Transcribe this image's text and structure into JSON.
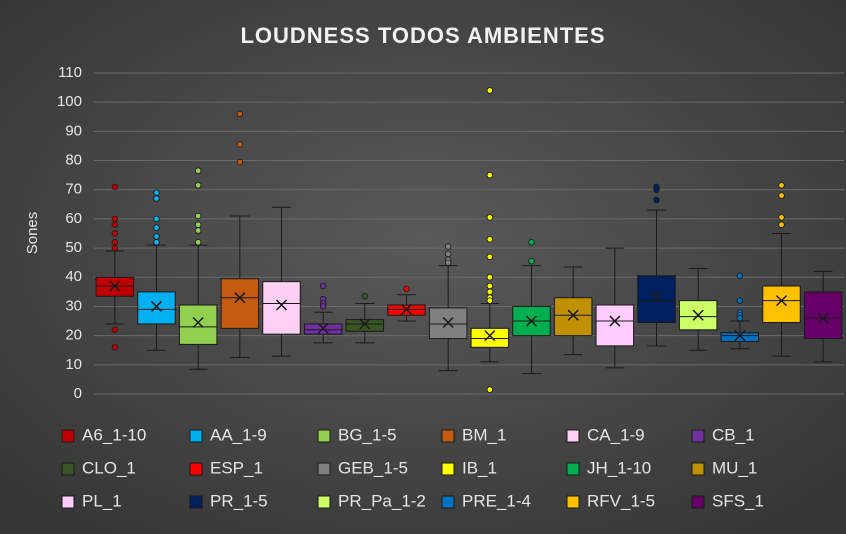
{
  "chart_data": {
    "type": "box",
    "title": "LOUDNESS TODOS AMBIENTES",
    "y_label": "Sones",
    "ylim": [
      0,
      110
    ],
    "yticks": [
      0,
      10,
      20,
      30,
      40,
      50,
      60,
      70,
      80,
      90,
      100,
      110
    ],
    "grid": true,
    "legend": "bottom",
    "series": [
      {
        "name": "A6_1-10",
        "color": "#c00000",
        "min": 24,
        "q1": 33.5,
        "median": 37,
        "q3": 40,
        "max": 49,
        "mean": 37,
        "outliers": [
          71,
          60,
          58,
          55,
          52,
          50,
          22,
          16
        ]
      },
      {
        "name": "AA_1-9",
        "color": "#00b0f0",
        "min": 15,
        "q1": 24,
        "median": 29,
        "q3": 35,
        "max": 51,
        "mean": 30,
        "outliers": [
          69,
          67,
          60,
          57,
          54,
          52
        ]
      },
      {
        "name": "BG_1-5",
        "color": "#92d050",
        "min": 8.5,
        "q1": 17,
        "median": 23,
        "q3": 30.5,
        "max": 51,
        "mean": 24.5,
        "outliers": [
          76.5,
          71.5,
          61,
          58,
          56,
          52
        ]
      },
      {
        "name": "BM_1",
        "color": "#c55a11",
        "min": 12.5,
        "q1": 22.5,
        "median": 33,
        "q3": 39.5,
        "max": 61,
        "mean": 33,
        "outliers": [
          96,
          85.5,
          79.5
        ]
      },
      {
        "name": "CA_1-9",
        "color": "#ffd0f4",
        "min": 13,
        "q1": 20.5,
        "median": 31,
        "q3": 38.5,
        "max": 64,
        "mean": 30.5,
        "outliers": []
      },
      {
        "name": "CB_1",
        "color": "#7030a0",
        "min": 17.5,
        "q1": 20.5,
        "median": 22,
        "q3": 24,
        "max": 28,
        "mean": 22.5,
        "outliers": [
          37,
          32.5,
          31,
          30
        ]
      },
      {
        "name": "CLO_1",
        "color": "#375623",
        "min": 17.5,
        "q1": 21.5,
        "median": 24,
        "q3": 25.5,
        "max": 31,
        "mean": 24,
        "outliers": [
          33.5
        ]
      },
      {
        "name": "ESP_1",
        "color": "#ff0000",
        "min": 25,
        "q1": 27,
        "median": 29,
        "q3": 30.5,
        "max": 34,
        "mean": 29,
        "outliers": [
          36
        ]
      },
      {
        "name": "GEB_1-5",
        "color": "#808080",
        "min": 8,
        "q1": 19,
        "median": 24,
        "q3": 29.5,
        "max": 44,
        "mean": 24.5,
        "outliers": [
          50.5,
          48,
          46,
          45
        ]
      },
      {
        "name": "IB_1",
        "color": "#ffff00",
        "min": 11,
        "q1": 16,
        "median": 19,
        "q3": 22.5,
        "max": 31,
        "mean": 20,
        "outliers": [
          104,
          75,
          60.5,
          53,
          47,
          40,
          37,
          35,
          33,
          32,
          1.5
        ]
      },
      {
        "name": "JH_1-10",
        "color": "#00b050",
        "min": 7,
        "q1": 20,
        "median": 25,
        "q3": 30,
        "max": 44,
        "mean": 25,
        "outliers": [
          52,
          45.5
        ]
      },
      {
        "name": "MU_1",
        "color": "#bf9000",
        "min": 13.5,
        "q1": 20,
        "median": 27,
        "q3": 33,
        "max": 43.5,
        "mean": 27,
        "outliers": []
      },
      {
        "name": "PL_1",
        "color": "#ffccff",
        "min": 9,
        "q1": 16.5,
        "median": 25,
        "q3": 30.5,
        "max": 50,
        "mean": 25,
        "outliers": []
      },
      {
        "name": "PR_1-5",
        "color": "#002060",
        "min": 16.5,
        "q1": 24.5,
        "median": 32,
        "q3": 40.5,
        "max": 63,
        "mean": 33.5,
        "outliers": [
          71,
          70,
          66.5
        ]
      },
      {
        "name": "PR_Pa_1-2",
        "color": "#ccff66",
        "min": 15,
        "q1": 22,
        "median": 26.5,
        "q3": 32,
        "max": 43,
        "mean": 27,
        "outliers": []
      },
      {
        "name": "PRE_1-4",
        "color": "#0070c0",
        "min": 15.5,
        "q1": 18,
        "median": 20,
        "q3": 21,
        "max": 25,
        "mean": 20,
        "outliers": [
          40.5,
          32,
          28,
          27,
          26
        ]
      },
      {
        "name": "RFV_1-5",
        "color": "#ffc000",
        "min": 13,
        "q1": 24.5,
        "median": 32,
        "q3": 37,
        "max": 55,
        "mean": 32,
        "outliers": [
          71.5,
          68,
          60.5,
          58
        ]
      },
      {
        "name": "SFS_1",
        "color": "#660066",
        "min": 11,
        "q1": 19,
        "median": 26,
        "q3": 35,
        "max": 42,
        "mean": 26,
        "outliers": []
      }
    ]
  }
}
